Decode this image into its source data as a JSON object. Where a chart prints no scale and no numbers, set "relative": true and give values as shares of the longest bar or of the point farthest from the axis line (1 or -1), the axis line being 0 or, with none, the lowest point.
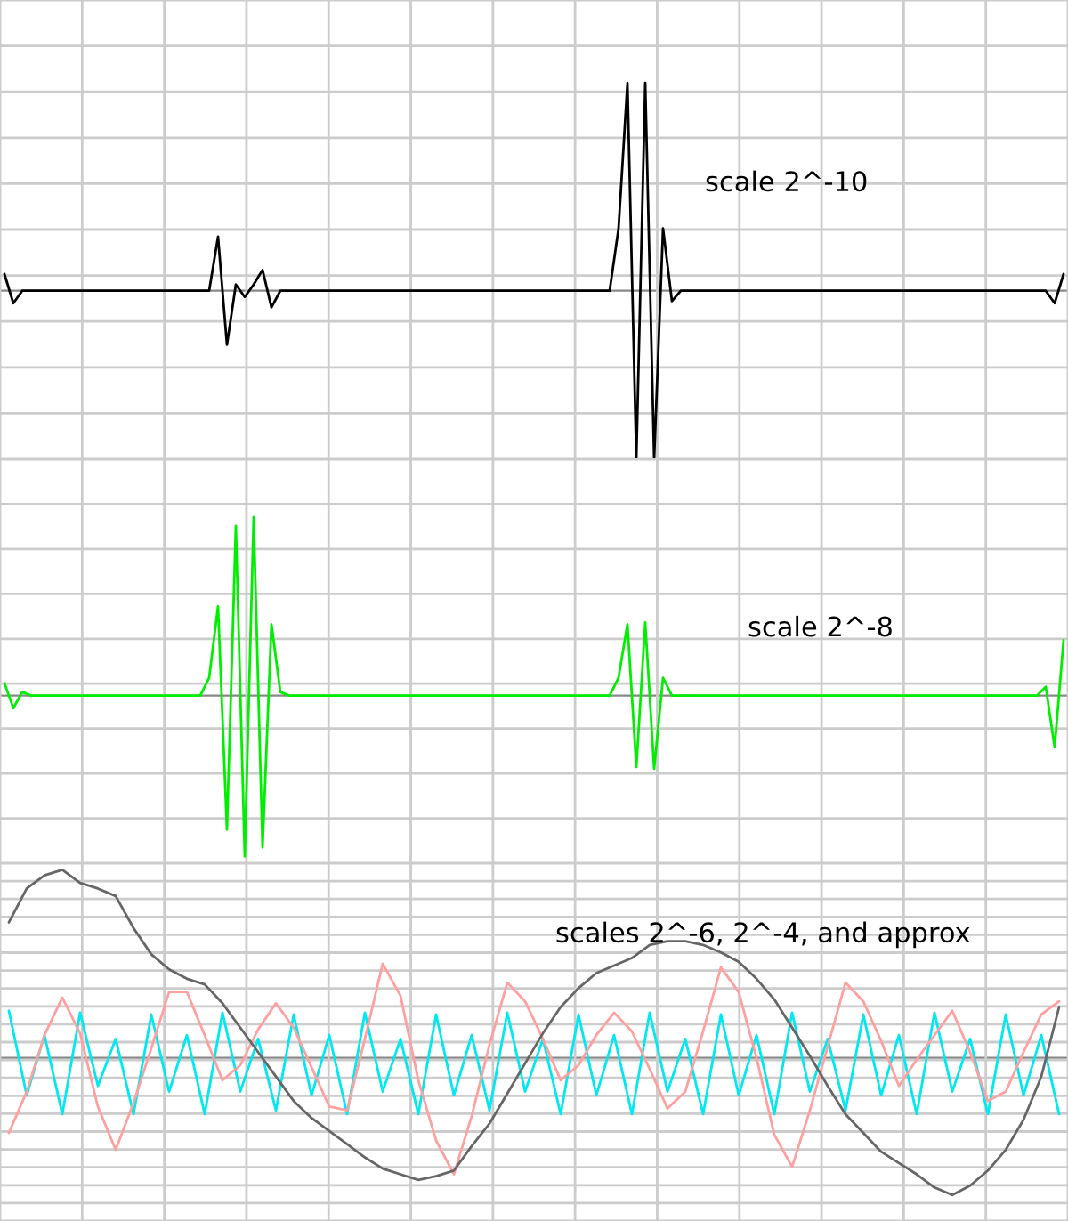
{
  "chart_data": [
    {
      "type": "line",
      "relative": true,
      "grid": true,
      "annotations": [
        "scale 2^-10"
      ],
      "categories": [
        null,
        null,
        null,
        null,
        null,
        null,
        null,
        null,
        null,
        null,
        null,
        null,
        null,
        null,
        null,
        null,
        null,
        null,
        null,
        null,
        null,
        null,
        null,
        null,
        null,
        null,
        null,
        null,
        null,
        null,
        null,
        null,
        null,
        null,
        null,
        null,
        null,
        null,
        null,
        null,
        null,
        null,
        null,
        null,
        null,
        null,
        null,
        null,
        null,
        null,
        null,
        null,
        null,
        null,
        null,
        null,
        null,
        null,
        null,
        null,
        null,
        null,
        null,
        null,
        null,
        null,
        null,
        null,
        null,
        null,
        null,
        null,
        null,
        null,
        null,
        null,
        null,
        null,
        null,
        null,
        null,
        null,
        null,
        null,
        null,
        null,
        null,
        null,
        null,
        null,
        null,
        null,
        null,
        null,
        null,
        null,
        null,
        null,
        null,
        null,
        null,
        null,
        null,
        null,
        null,
        null,
        null,
        null,
        null,
        null,
        null,
        null,
        null,
        null,
        null,
        null,
        null,
        null,
        null,
        null
      ],
      "series": [
        {
          "color": "#000000",
          "values": [
            0.08,
            -0.06,
            0,
            0,
            0,
            0,
            0,
            0,
            0,
            0,
            0,
            0,
            0,
            0,
            0,
            0,
            0,
            0,
            0,
            0,
            0,
            0,
            0,
            0,
            0.26,
            -0.26,
            0.03,
            -0.03,
            0.03,
            0.1,
            -0.08,
            0,
            0,
            0,
            0,
            0,
            0,
            0,
            0,
            0,
            0,
            0,
            0,
            0,
            0,
            0,
            0,
            0,
            0,
            0,
            0,
            0,
            0,
            0,
            0,
            0,
            0,
            0,
            0,
            0,
            0,
            0,
            0,
            0,
            0,
            0,
            0,
            0,
            0,
            0.3,
            1,
            -0.81,
            1,
            -0.81,
            0.3,
            -0.05,
            0,
            0,
            0,
            0,
            0,
            0,
            0,
            0,
            0,
            0,
            0,
            0,
            0,
            0,
            0,
            0,
            0,
            0,
            0,
            0,
            0,
            0,
            0,
            0,
            0,
            0,
            0,
            0,
            0,
            0,
            0,
            0,
            0,
            0,
            0,
            0,
            0,
            0,
            0,
            0,
            0,
            0,
            -0.06,
            0.08
          ]
        }
      ]
    },
    {
      "type": "line",
      "relative": true,
      "grid": true,
      "annotations": [
        "scale 2^-8"
      ],
      "categories": [
        null,
        null,
        null,
        null,
        null,
        null,
        null,
        null,
        null,
        null,
        null,
        null,
        null,
        null,
        null,
        null,
        null,
        null,
        null,
        null,
        null,
        null,
        null,
        null,
        null,
        null,
        null,
        null,
        null,
        null,
        null,
        null,
        null,
        null,
        null,
        null,
        null,
        null,
        null,
        null,
        null,
        null,
        null,
        null,
        null,
        null,
        null,
        null,
        null,
        null,
        null,
        null,
        null,
        null,
        null,
        null,
        null,
        null,
        null,
        null,
        null,
        null,
        null,
        null,
        null,
        null,
        null,
        null,
        null,
        null,
        null,
        null,
        null,
        null,
        null,
        null,
        null,
        null,
        null,
        null,
        null,
        null,
        null,
        null,
        null,
        null,
        null,
        null,
        null,
        null,
        null,
        null,
        null,
        null,
        null,
        null,
        null,
        null,
        null,
        null,
        null,
        null,
        null,
        null,
        null,
        null,
        null,
        null,
        null,
        null,
        null,
        null,
        null,
        null,
        null,
        null,
        null,
        null,
        null,
        null
      ],
      "series": [
        {
          "color": "#00ee00",
          "values": [
            0.07,
            -0.07,
            0.02,
            0,
            0,
            0,
            0,
            0,
            0,
            0,
            0,
            0,
            0,
            0,
            0,
            0,
            0,
            0,
            0,
            0,
            0,
            0,
            0,
            0.1,
            0.5,
            -0.75,
            0.95,
            -0.9,
            1,
            -0.85,
            0.4,
            0.02,
            0,
            0,
            0,
            0,
            0,
            0,
            0,
            0,
            0,
            0,
            0,
            0,
            0,
            0,
            0,
            0,
            0,
            0,
            0,
            0,
            0,
            0,
            0,
            0,
            0,
            0,
            0,
            0,
            0,
            0,
            0,
            0,
            0,
            0,
            0,
            0,
            0,
            0.1,
            0.4,
            -0.4,
            0.41,
            -0.41,
            0.1,
            0,
            0,
            0,
            0,
            0,
            0,
            0,
            0,
            0,
            0,
            0,
            0,
            0,
            0,
            0,
            0,
            0,
            0,
            0,
            0,
            0,
            0,
            0,
            0,
            0,
            0,
            0,
            0,
            0,
            0,
            0,
            0,
            0,
            0,
            0,
            0,
            0,
            0,
            0,
            0,
            0,
            0,
            0.05,
            -0.29,
            0.31
          ]
        }
      ]
    },
    {
      "type": "line",
      "relative": true,
      "grid": true,
      "annotations": [
        "scales 2^-6, 2^-4, and approx"
      ],
      "categories": [
        null,
        null,
        null,
        null,
        null,
        null,
        null,
        null,
        null,
        null,
        null,
        null,
        null,
        null,
        null,
        null,
        null,
        null,
        null,
        null,
        null,
        null,
        null,
        null,
        null,
        null,
        null,
        null,
        null,
        null,
        null,
        null,
        null,
        null,
        null,
        null,
        null,
        null,
        null,
        null,
        null,
        null,
        null,
        null,
        null,
        null,
        null,
        null,
        null,
        null,
        null,
        null,
        null,
        null,
        null,
        null,
        null,
        null,
        null,
        null
      ],
      "series": [
        {
          "color": "#00e8f0",
          "values": [
            0.25,
            -0.2,
            0.12,
            -0.3,
            0.24,
            -0.15,
            0.1,
            -0.3,
            0.23,
            -0.18,
            0.12,
            -0.3,
            0.24,
            -0.18,
            0.1,
            -0.28,
            0.23,
            -0.2,
            0.12,
            -0.3,
            0.24,
            -0.18,
            0.1,
            -0.3,
            0.23,
            -0.2,
            0.12,
            -0.28,
            0.24,
            -0.18,
            0.1,
            -0.3,
            0.23,
            -0.2,
            0.12,
            -0.3,
            0.24,
            -0.18,
            0.1,
            -0.3,
            0.23,
            -0.2,
            0.12,
            -0.3,
            0.24,
            -0.18,
            0.1,
            -0.28,
            0.23,
            -0.2,
            0.12,
            -0.3,
            0.24,
            -0.18,
            0.1,
            -0.3,
            0.23,
            -0.2,
            0.12,
            -0.3
          ]
        },
        {
          "color": "#ffa0a0",
          "values": [
            -0.4,
            -0.18,
            0.12,
            0.32,
            0.13,
            -0.26,
            -0.49,
            -0.24,
            0.05,
            0.35,
            0.35,
            0.12,
            -0.12,
            -0.04,
            0.15,
            0.29,
            0.16,
            -0.05,
            -0.26,
            -0.28,
            0.1,
            0.5,
            0.33,
            -0.12,
            -0.44,
            -0.62,
            -0.31,
            0.07,
            0.4,
            0.3,
            0.1,
            -0.12,
            -0.04,
            0.12,
            0.24,
            0.14,
            -0.06,
            -0.27,
            -0.18,
            0.14,
            0.48,
            0.35,
            0.0,
            -0.41,
            -0.58,
            -0.28,
            0.06,
            0.4,
            0.3,
            0.09,
            -0.15,
            -0.01,
            0.12,
            0.25,
            0.03,
            -0.23,
            -0.18,
            0.03,
            0.23,
            0.3
          ]
        },
        {
          "color": "#666666",
          "values": [
            0.72,
            0.9,
            0.97,
            1,
            0.93,
            0.9,
            0.86,
            0.69,
            0.55,
            0.47,
            0.42,
            0.39,
            0.29,
            0.16,
            0.03,
            -0.1,
            -0.23,
            -0.32,
            -0.39,
            -0.46,
            -0.53,
            -0.59,
            -0.62,
            -0.65,
            -0.63,
            -0.6,
            -0.47,
            -0.35,
            -0.19,
            -0.03,
            0.13,
            0.27,
            0.37,
            0.45,
            0.49,
            0.53,
            0.6,
            0.62,
            0.62,
            0.6,
            0.56,
            0.51,
            0.42,
            0.31,
            0.16,
            0.01,
            -0.15,
            -0.3,
            -0.4,
            -0.5,
            -0.56,
            -0.62,
            -0.69,
            -0.73,
            -0.68,
            -0.6,
            -0.49,
            -0.33,
            -0.1,
            0.27
          ]
        }
      ]
    }
  ]
}
